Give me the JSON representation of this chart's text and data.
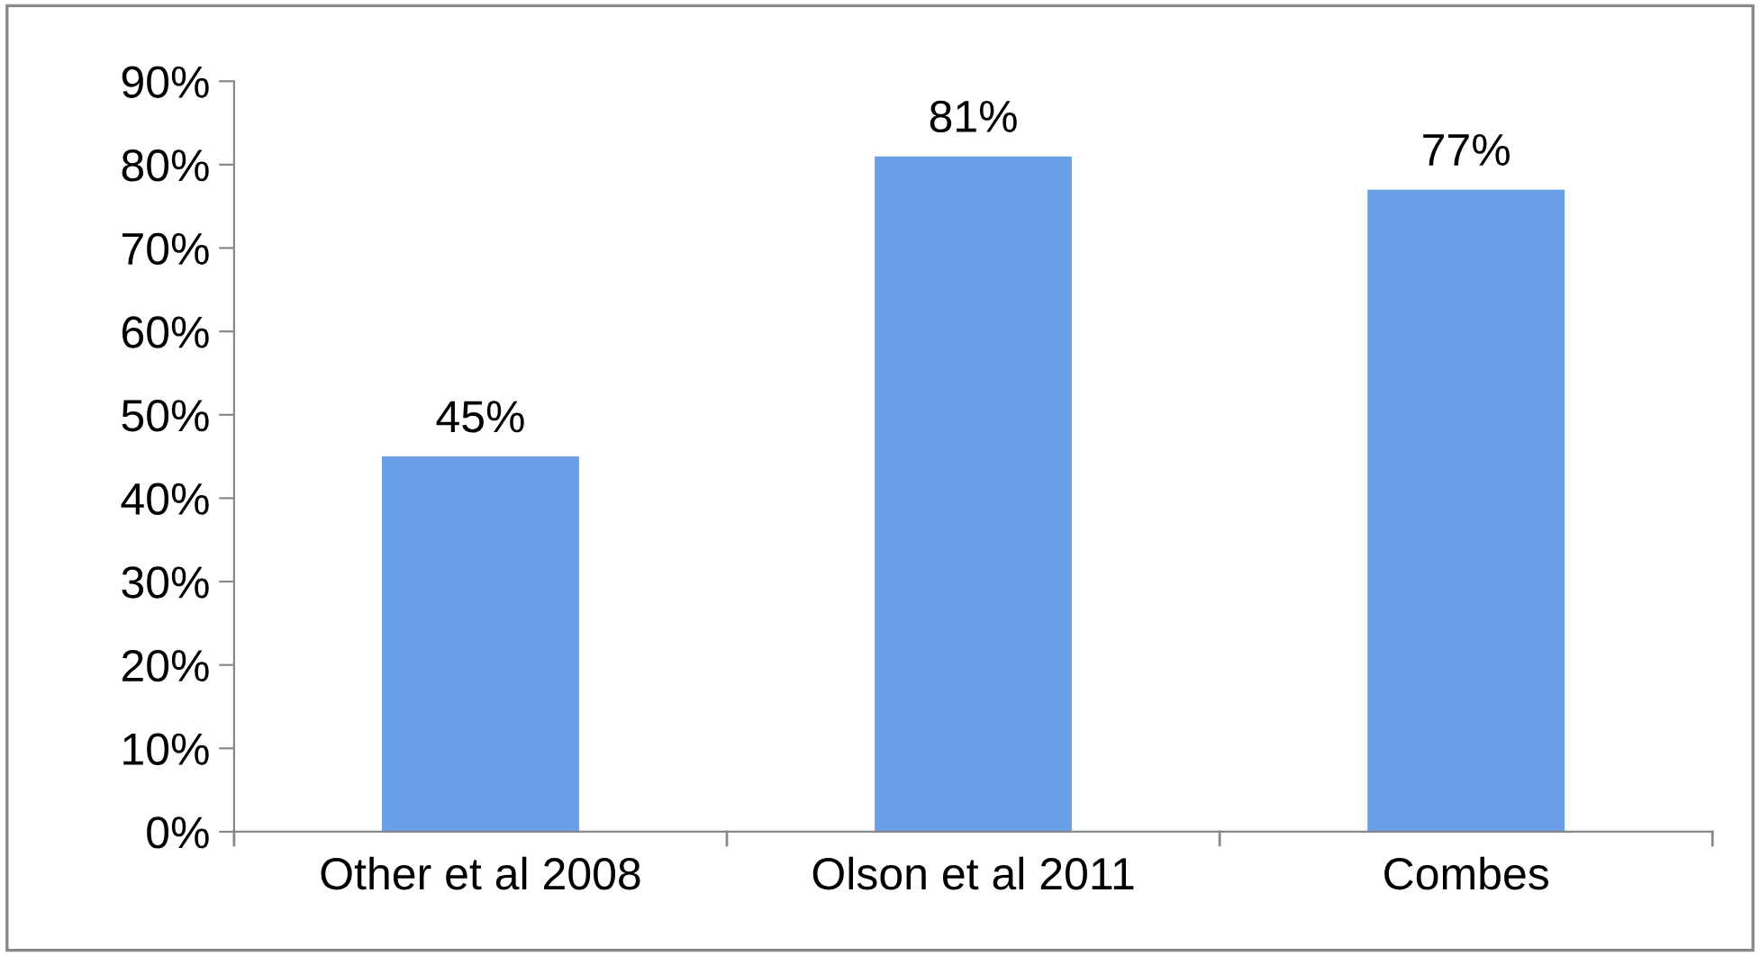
{
  "chart_data": {
    "type": "bar",
    "categories": [
      "Other et al 2008",
      "Olson et al 2011",
      "Combes"
    ],
    "values": [
      45,
      81,
      77
    ],
    "value_labels": [
      "45%",
      "81%",
      "77%"
    ],
    "color": "#6a9fe8",
    "ylim": [
      0,
      90
    ],
    "yticks": [
      {
        "value": 0,
        "label": "0%"
      },
      {
        "value": 10,
        "label": "10%"
      },
      {
        "value": 20,
        "label": "20%"
      },
      {
        "value": 30,
        "label": "30%"
      },
      {
        "value": 40,
        "label": "40%"
      },
      {
        "value": 50,
        "label": "50%"
      },
      {
        "value": 60,
        "label": "60%"
      },
      {
        "value": 70,
        "label": "70%"
      },
      {
        "value": 80,
        "label": "80%"
      },
      {
        "value": 90,
        "label": "90%"
      }
    ],
    "grid": false,
    "legend": false
  }
}
